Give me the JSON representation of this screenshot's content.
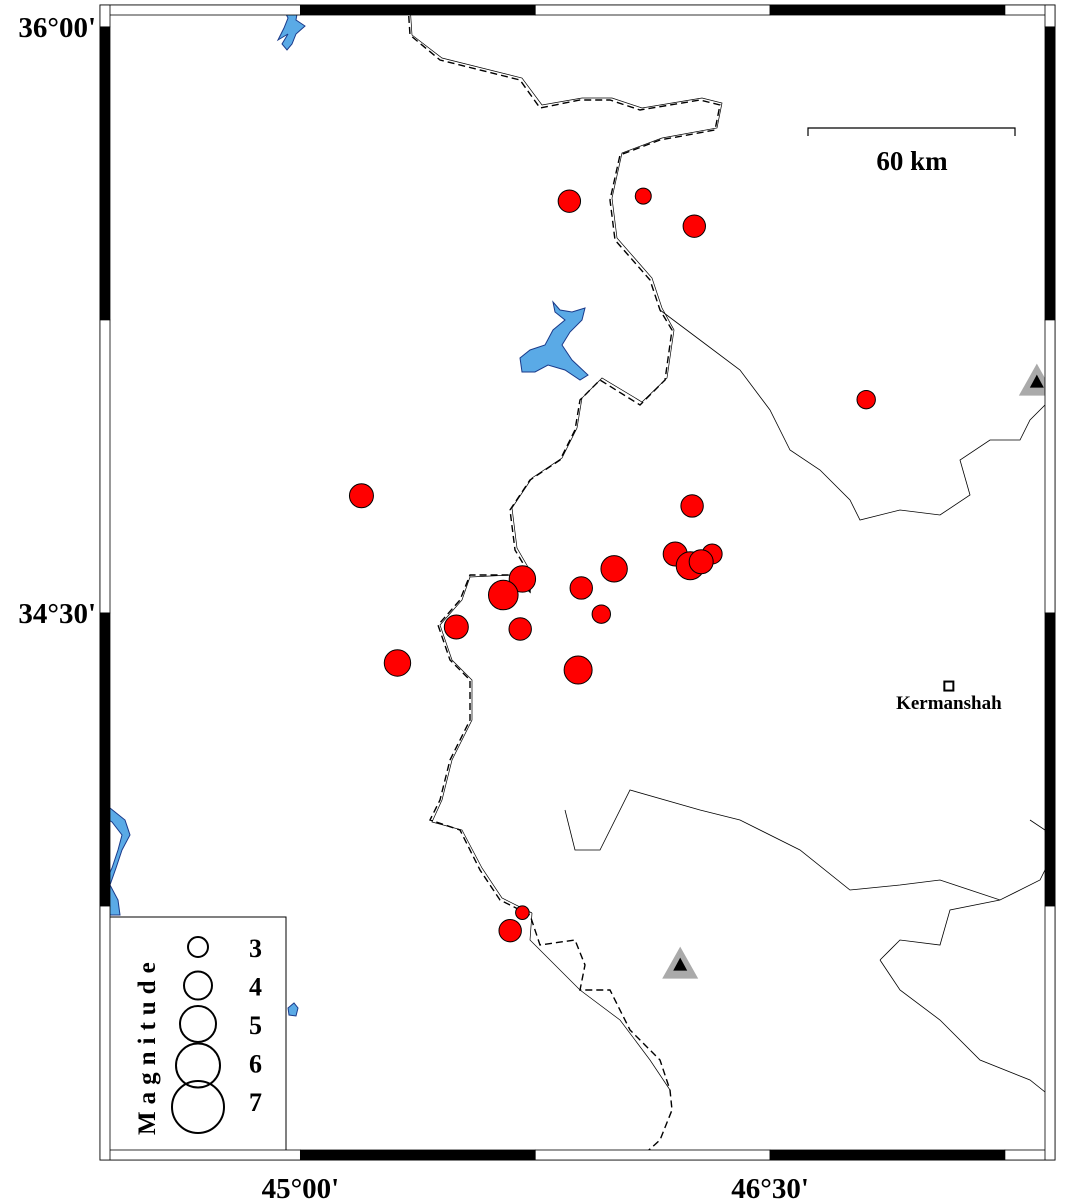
{
  "map": {
    "extent": {
      "lon": [
        44.36,
        47.41
      ],
      "lat": [
        33.1,
        36.056
      ]
    },
    "frame_tick_interval_deg": 0.75,
    "lon_labels": [
      {
        "value": 45.0,
        "text": "45°00'"
      },
      {
        "value": 46.5,
        "text": "46°30'"
      }
    ],
    "lat_labels": [
      {
        "value": 36.0,
        "text": "36°00'"
      },
      {
        "value": 34.5,
        "text": "34°30'"
      }
    ],
    "scale_bar": {
      "label": "60 km",
      "length_km": 60
    },
    "colors": {
      "event": "#ff0000",
      "water": "#5aaae6",
      "station": "#aaaaaa",
      "border": "#000000"
    },
    "city": {
      "name": "Kermanshah",
      "lon": 47.071,
      "lat": 34.313,
      "icon": "square-icon"
    },
    "stations": [
      {
        "lon": 47.352,
        "lat": 35.092,
        "icon": "triangle-icon"
      },
      {
        "lon": 46.213,
        "lat": 33.6,
        "icon": "triangle-icon"
      }
    ],
    "events": [
      {
        "lon": 45.859,
        "lat": 35.554,
        "mag": 3.3
      },
      {
        "lon": 46.095,
        "lat": 35.567,
        "mag": 2.5
      },
      {
        "lon": 46.258,
        "lat": 35.49,
        "mag": 3.3
      },
      {
        "lon": 46.807,
        "lat": 35.046,
        "mag": 2.8
      },
      {
        "lon": 45.195,
        "lat": 34.8,
        "mag": 3.5
      },
      {
        "lon": 46.251,
        "lat": 34.774,
        "mag": 3.3
      },
      {
        "lon": 46.197,
        "lat": 34.651,
        "mag": 3.5
      },
      {
        "lon": 46.315,
        "lat": 34.651,
        "mag": 3.0
      },
      {
        "lon": 46.245,
        "lat": 34.621,
        "mag": 4.0
      },
      {
        "lon": 46.28,
        "lat": 34.631,
        "mag": 3.5
      },
      {
        "lon": 46.002,
        "lat": 34.613,
        "mag": 3.8
      },
      {
        "lon": 45.709,
        "lat": 34.587,
        "mag": 3.8
      },
      {
        "lon": 45.648,
        "lat": 34.546,
        "mag": 4.2
      },
      {
        "lon": 45.897,
        "lat": 34.564,
        "mag": 3.3
      },
      {
        "lon": 45.961,
        "lat": 34.497,
        "mag": 2.8
      },
      {
        "lon": 45.498,
        "lat": 34.464,
        "mag": 3.5
      },
      {
        "lon": 45.702,
        "lat": 34.459,
        "mag": 3.3
      },
      {
        "lon": 45.31,
        "lat": 34.372,
        "mag": 3.8
      },
      {
        "lon": 45.887,
        "lat": 34.354,
        "mag": 4.0
      },
      {
        "lon": 45.709,
        "lat": 33.733,
        "mag": 2.2
      },
      {
        "lon": 45.67,
        "lat": 33.687,
        "mag": 3.3
      }
    ],
    "legend": {
      "title": "Magnitude",
      "items": [
        {
          "mag": 3,
          "label": "3"
        },
        {
          "mag": 4,
          "label": "4"
        },
        {
          "mag": 5,
          "label": "5"
        },
        {
          "mag": 6,
          "label": "6"
        },
        {
          "mag": 7,
          "label": "7"
        }
      ]
    }
  }
}
